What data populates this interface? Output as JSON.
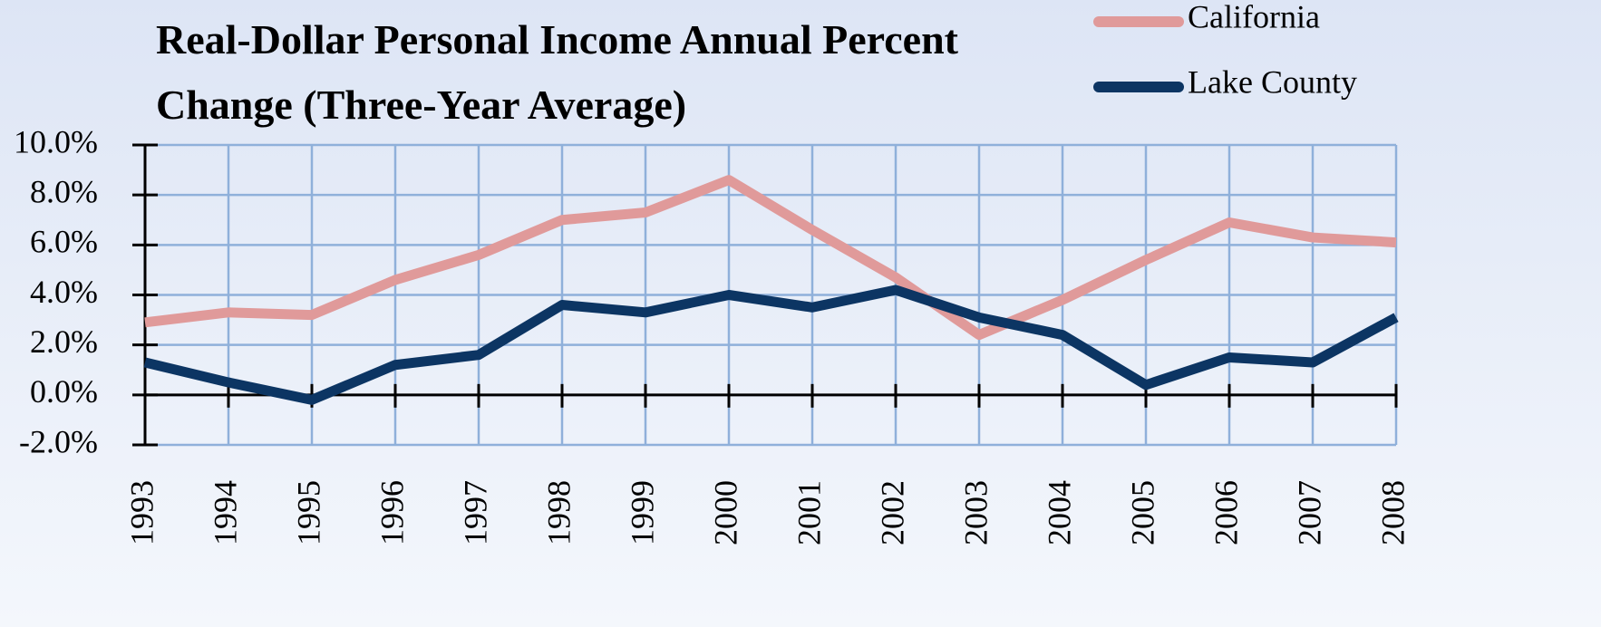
{
  "chart_data": {
    "type": "line",
    "title": "Real-Dollar Personal Income Annual Percent Change (Three-Year Average)",
    "categories": [
      "1993",
      "1994",
      "1995",
      "1996",
      "1997",
      "1998",
      "1999",
      "2000",
      "2001",
      "2002",
      "2003",
      "2004",
      "2005",
      "2006",
      "2007",
      "2008"
    ],
    "series": [
      {
        "name": "California",
        "color": "#e09a9a",
        "values": [
          2.9,
          3.3,
          3.2,
          4.6,
          5.6,
          7.0,
          7.3,
          8.6,
          6.6,
          4.7,
          2.4,
          3.8,
          5.4,
          6.9,
          6.3,
          6.1
        ]
      },
      {
        "name": "Lake County",
        "color": "#0c3563",
        "values": [
          1.3,
          0.5,
          -0.2,
          1.2,
          1.6,
          3.6,
          3.3,
          4.0,
          3.5,
          4.2,
          3.1,
          2.4,
          0.4,
          1.5,
          1.3,
          3.1
        ]
      }
    ],
    "ylim": [
      -2,
      10
    ],
    "yticks": [
      {
        "value": -2,
        "label": "-2.0%"
      },
      {
        "value": 0,
        "label": "0.0%"
      },
      {
        "value": 2,
        "label": "2.0%"
      },
      {
        "value": 4,
        "label": "4.0%"
      },
      {
        "value": 6,
        "label": "6.0%"
      },
      {
        "value": 8,
        "label": "8.0%"
      },
      {
        "value": 10,
        "label": "10.0%"
      }
    ],
    "grid": true,
    "legend": "top-right"
  }
}
